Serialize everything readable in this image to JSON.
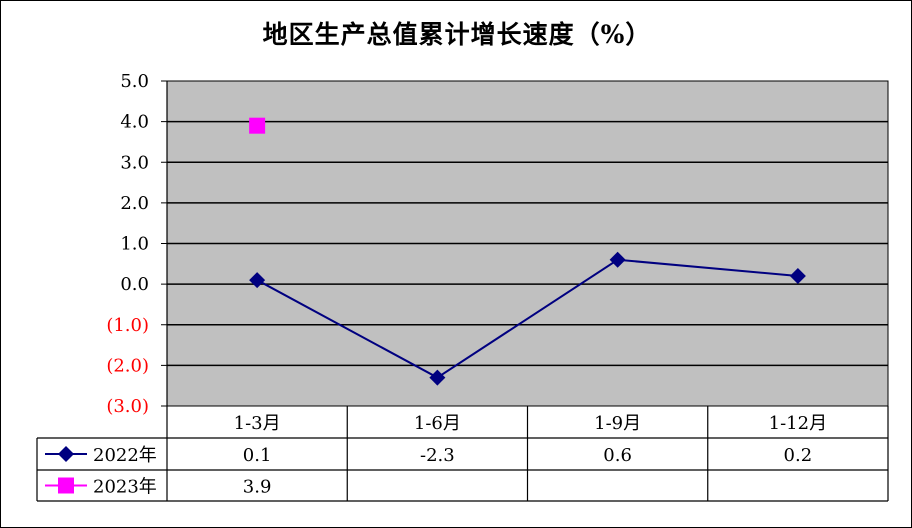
{
  "chart_data": {
    "type": "line",
    "title": "地区生产总值累计增长速度（%）",
    "categories": [
      "1-3月",
      "1-6月",
      "1-9月",
      "1-12月"
    ],
    "ylim": [
      -3.0,
      5.0
    ],
    "ytick_step": 1.0,
    "ytick_labels": [
      "5.0",
      "4.0",
      "3.0",
      "2.0",
      "1.0",
      "0.0",
      "(1.0)",
      "(2.0)",
      "(3.0)"
    ],
    "grid": true,
    "legend": "data-table-left",
    "series": [
      {
        "name": "2022年",
        "values": [
          0.1,
          -2.3,
          0.6,
          0.2
        ],
        "labels": [
          "0.1",
          "-2.3",
          "0.6",
          "0.2"
        ],
        "color": "#000080",
        "marker": "diamond"
      },
      {
        "name": "2023年",
        "values": [
          3.9,
          null,
          null,
          null
        ],
        "labels": [
          "3.9",
          "",
          "",
          ""
        ],
        "color": "#ff00ff",
        "marker": "square"
      }
    ]
  },
  "colors": {
    "plot_background": "#c0c0c0",
    "gridline": "#000000",
    "negative_tick": "#ff0000",
    "positive_tick": "#000000"
  }
}
